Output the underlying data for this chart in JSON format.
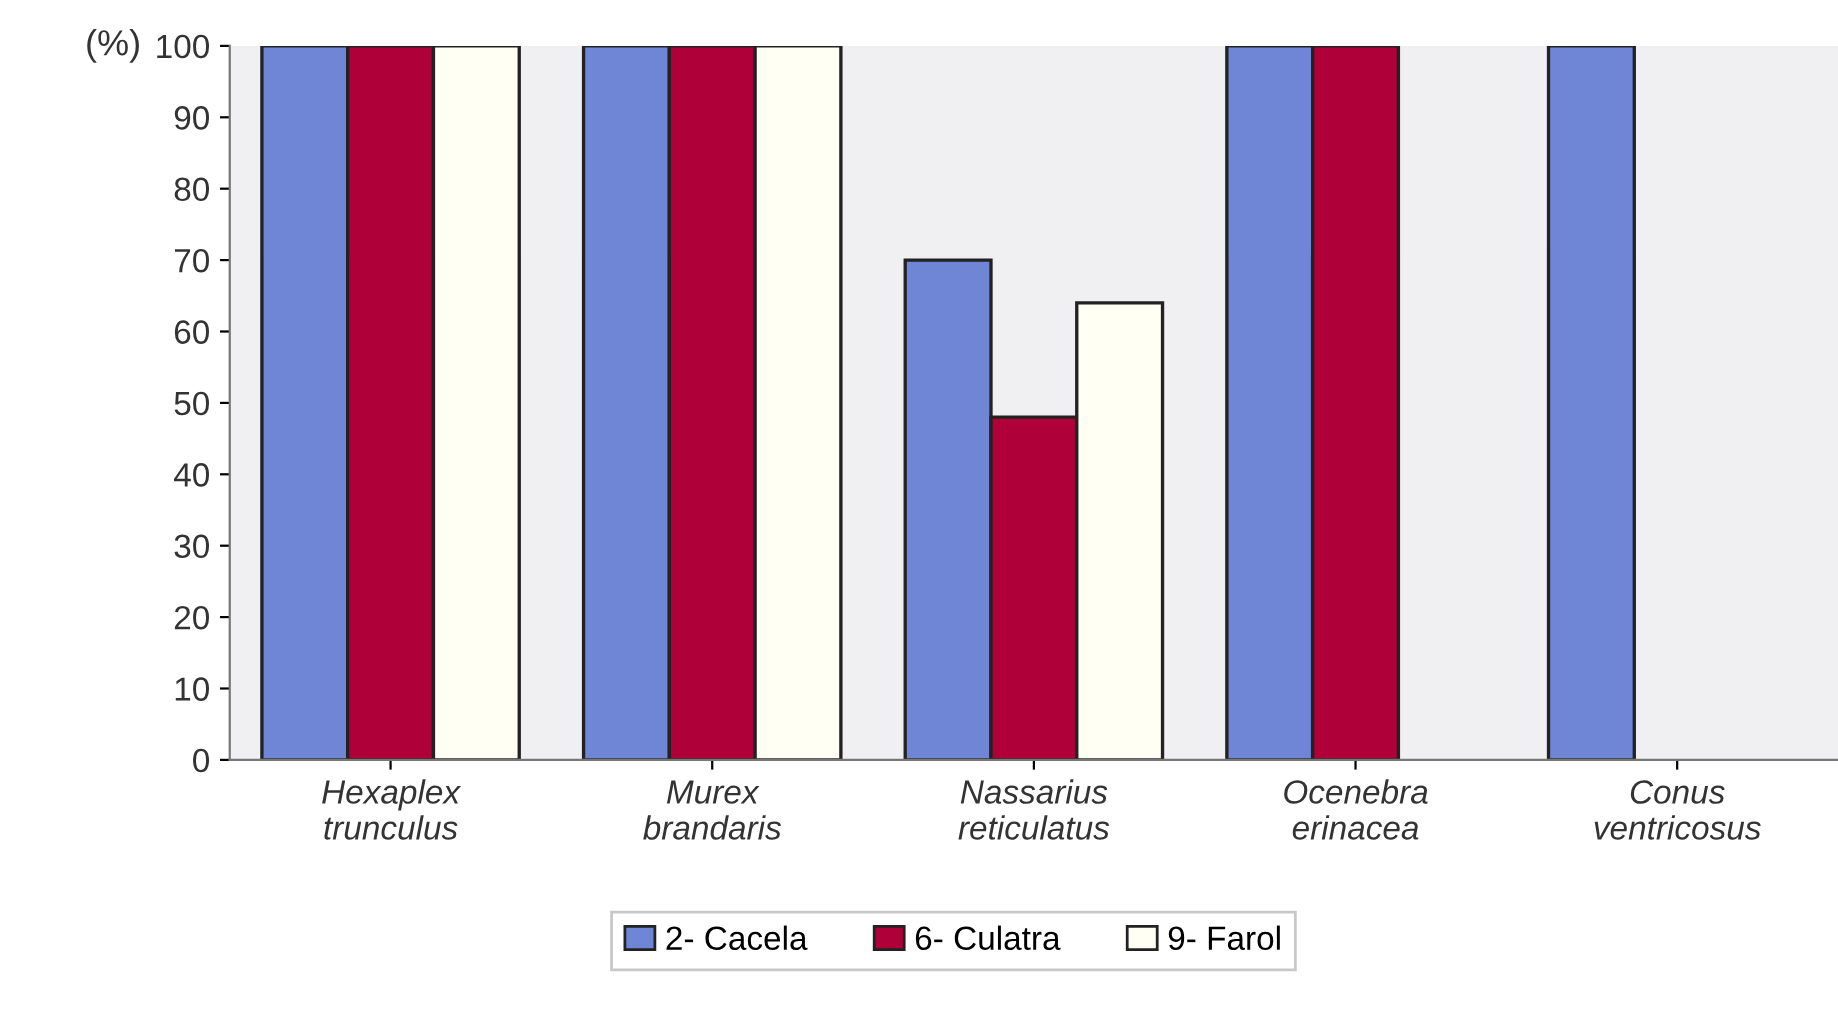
{
  "chart_data": {
    "type": "bar",
    "ylabel": "(%)",
    "categories": [
      "Hexaplex\ntrunculus",
      "Murex\nbrandaris",
      "Nassarius\nreticulatus",
      "Ocenebra\nerinacea",
      "Conus\nventricosus"
    ],
    "series": [
      {
        "name": "2- Cacela",
        "color": "#6f86d6",
        "values": [
          100,
          100,
          70,
          100,
          100
        ]
      },
      {
        "name": "6- Culatra",
        "color": "#b0003a",
        "values": [
          100,
          100,
          48,
          100,
          null
        ]
      },
      {
        "name": "9- Farol",
        "color": "#fffff4",
        "values": [
          100,
          100,
          64,
          null,
          null
        ]
      }
    ],
    "ylim": [
      0,
      100
    ],
    "yticks": [
      0,
      10,
      20,
      30,
      40,
      50,
      60,
      70,
      80,
      90,
      100
    ],
    "grid": false,
    "legend": "bottom"
  }
}
